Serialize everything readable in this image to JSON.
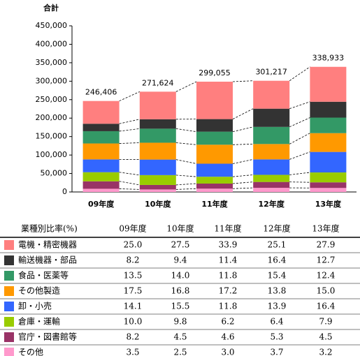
{
  "chart_data": {
    "type": "bar",
    "title": "合計",
    "categories": [
      "09年度",
      "10年度",
      "11年度",
      "12年度",
      "13年度"
    ],
    "values": [
      246406,
      271624,
      299055,
      301217,
      338933
    ],
    "value_labels": [
      "246,406",
      "271,624",
      "299,055",
      "301,217",
      "338,933"
    ],
    "ylim": [
      0,
      450000
    ],
    "yticks": [
      0,
      {
        "value": 50000,
        "label": "50,000"
      },
      {
        "value": 100000,
        "label": "100,000"
      },
      {
        "value": 150000,
        "label": "150,000"
      },
      {
        "value": 200000,
        "label": "200,000"
      },
      {
        "value": 250000,
        "label": "250,000"
      },
      {
        "value": 300000,
        "label": "300,000"
      },
      {
        "value": 350000,
        "label": "350,000"
      },
      {
        "value": 400000,
        "label": "400,000"
      },
      {
        "value": 450000,
        "label": "450,000"
      }
    ],
    "table_title": "業種別比率(%)",
    "series": [
      {
        "name": "電機・精密機器",
        "color": "#ff7f7f",
        "values": [
          25.0,
          27.5,
          33.9,
          25.1,
          27.9
        ],
        "value_labels": [
          "25.0",
          "27.5",
          "33.9",
          "25.1",
          "27.9"
        ]
      },
      {
        "name": "輸送機器・部品",
        "color": "#333333",
        "values": [
          8.2,
          9.4,
          11.4,
          16.4,
          12.7
        ],
        "value_labels": [
          "8.2",
          "9.4",
          "11.4",
          "16.4",
          "12.7"
        ]
      },
      {
        "name": "食品・医薬等",
        "color": "#339966",
        "values": [
          13.5,
          14.0,
          11.8,
          15.4,
          12.4
        ],
        "value_labels": [
          "13.5",
          "14.0",
          "11.8",
          "15.4",
          "12.4"
        ]
      },
      {
        "name": "その他製造",
        "color": "#ff9900",
        "values": [
          17.5,
          16.8,
          17.2,
          13.8,
          15.0
        ],
        "value_labels": [
          "17.5",
          "16.8",
          "17.2",
          "13.8",
          "15.0"
        ]
      },
      {
        "name": "卸・小売",
        "color": "#3366ff",
        "values": [
          14.1,
          15.5,
          11.8,
          13.9,
          16.4
        ],
        "value_labels": [
          "14.1",
          "15.5",
          "11.8",
          "13.9",
          "16.4"
        ]
      },
      {
        "name": "倉庫・運輸",
        "color": "#99cc00",
        "values": [
          10.0,
          9.8,
          6.2,
          6.4,
          7.9
        ],
        "value_labels": [
          "10.0",
          "9.8",
          "6.2",
          "6.4",
          "7.9"
        ]
      },
      {
        "name": "官庁・図書館等",
        "color": "#993366",
        "values": [
          8.2,
          4.5,
          4.6,
          5.3,
          4.5
        ],
        "value_labels": [
          "8.2",
          "4.5",
          "4.6",
          "5.3",
          "4.5"
        ]
      },
      {
        "name": "その他",
        "color": "#ff99cc",
        "values": [
          3.5,
          2.5,
          3.0,
          3.7,
          3.2
        ],
        "value_labels": [
          "3.5",
          "2.5",
          "3.0",
          "3.7",
          "3.2"
        ]
      }
    ]
  }
}
